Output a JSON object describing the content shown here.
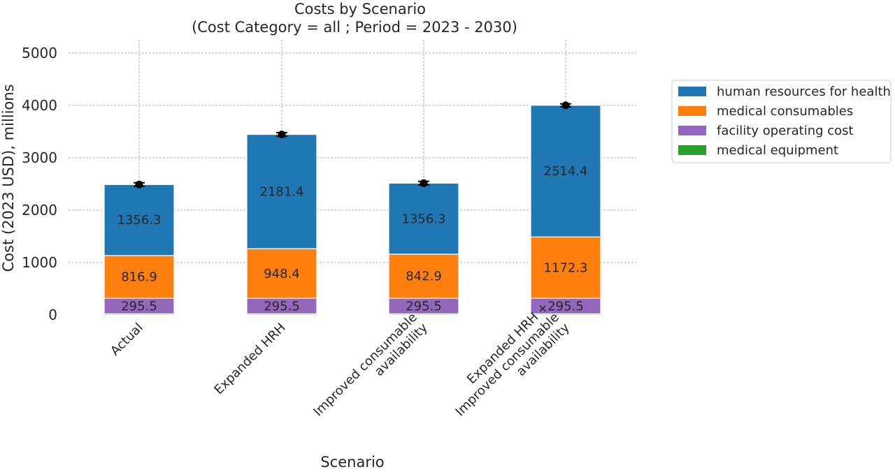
{
  "chart_data": {
    "type": "bar",
    "stacked": true,
    "title": "Costs by Scenario",
    "subtitle": "(Cost Category = all ; Period = 2023 - 2030)",
    "xlabel": "Scenario",
    "ylabel": "Cost (2023 USD), millions",
    "ylim": [
      0,
      5300
    ],
    "yticks": [
      0,
      1000,
      2000,
      3000,
      4000,
      5000
    ],
    "grid": true,
    "legend_position": "right, outside",
    "categories": [
      "Actual",
      "Expanded HRH",
      "Improved consumable\navailability",
      "Expanded HRH +\nImproved consumable\navailability"
    ],
    "series": [
      {
        "name": "medical equipment",
        "color": "#2ca02c",
        "values": [
          20,
          20,
          20,
          20
        ],
        "labels": [
          "",
          "",
          "",
          ""
        ]
      },
      {
        "name": "facility operating cost",
        "color": "#9467bd",
        "values": [
          295.5,
          295.5,
          295.5,
          295.5
        ],
        "labels": [
          "295.5",
          "295.5",
          "295.5",
          "295.5"
        ]
      },
      {
        "name": "medical consumables",
        "color": "#ff7f0e",
        "values": [
          816.9,
          948.4,
          842.9,
          1172.3
        ],
        "labels": [
          "816.9",
          "948.4",
          "842.9",
          "1172.3"
        ]
      },
      {
        "name": "human resources for health",
        "color": "#1f77b4",
        "values": [
          1356.3,
          2181.4,
          1356.3,
          2514.4
        ],
        "labels": [
          "1356.3",
          "2181.4",
          "1356.3",
          "2514.4"
        ]
      }
    ],
    "error_bars": [
      {
        "value": 2489,
        "lower": 2455,
        "upper": 2523
      },
      {
        "value": 3445,
        "lower": 3410,
        "upper": 3480
      },
      {
        "value": 2515,
        "lower": 2480,
        "upper": 2550
      },
      {
        "value": 4002,
        "lower": 3975,
        "upper": 4030
      }
    ],
    "legend_order": [
      "human resources for health",
      "medical consumables",
      "facility operating cost",
      "medical equipment"
    ]
  }
}
